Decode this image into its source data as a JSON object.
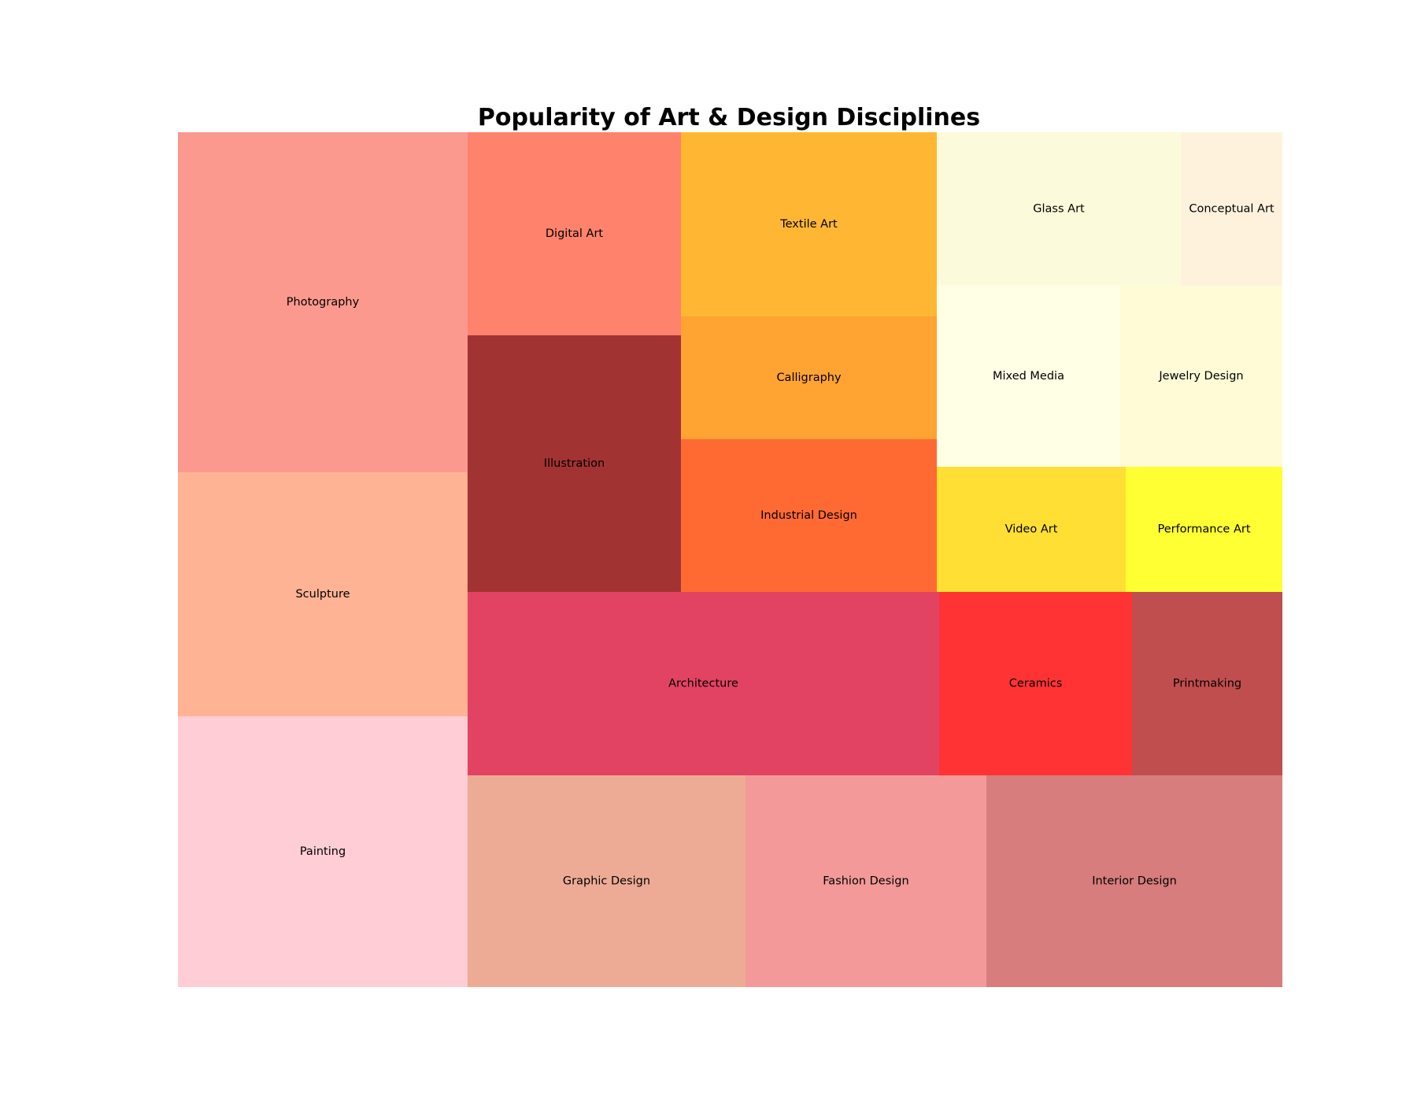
{
  "chart_data": {
    "type": "treemap",
    "title": "Popularity of Art & Design Disciplines",
    "xlim": [
      0,
      100
    ],
    "ylim": [
      0,
      100
    ],
    "grid": false,
    "legend": "none",
    "items": [
      {
        "label": "Painting",
        "color": "#FFC0CB"
      },
      {
        "label": "Sculpture",
        "color": "#FFA07A"
      },
      {
        "label": "Photography",
        "color": "#FA8072"
      },
      {
        "label": "Graphic Design",
        "color": "#E9967A"
      },
      {
        "label": "Fashion Design",
        "color": "#F08080"
      },
      {
        "label": "Interior Design",
        "color": "#CD5C5C"
      },
      {
        "label": "Architecture",
        "color": "#DC143C"
      },
      {
        "label": "Ceramics",
        "color": "#FF0000"
      },
      {
        "label": "Printmaking",
        "color": "#B22222"
      },
      {
        "label": "Illustration",
        "color": "#8B0000"
      },
      {
        "label": "Digital Art",
        "color": "#FF6347"
      },
      {
        "label": "Industrial Design",
        "color": "#FF4500"
      },
      {
        "label": "Calligraphy",
        "color": "#FF8C00"
      },
      {
        "label": "Textile Art",
        "color": "#FFA500"
      },
      {
        "label": "Video Art",
        "color": "#FFD700"
      },
      {
        "label": "Performance Art",
        "color": "#FFFF00"
      },
      {
        "label": "Mixed Media",
        "color": "#FFFFE0"
      },
      {
        "label": "Jewelry Design",
        "color": "#FFFACD"
      },
      {
        "label": "Glass Art",
        "color": "#FAFAD2"
      },
      {
        "label": "Conceptual Art",
        "color": "#FFEFD5"
      }
    ]
  }
}
